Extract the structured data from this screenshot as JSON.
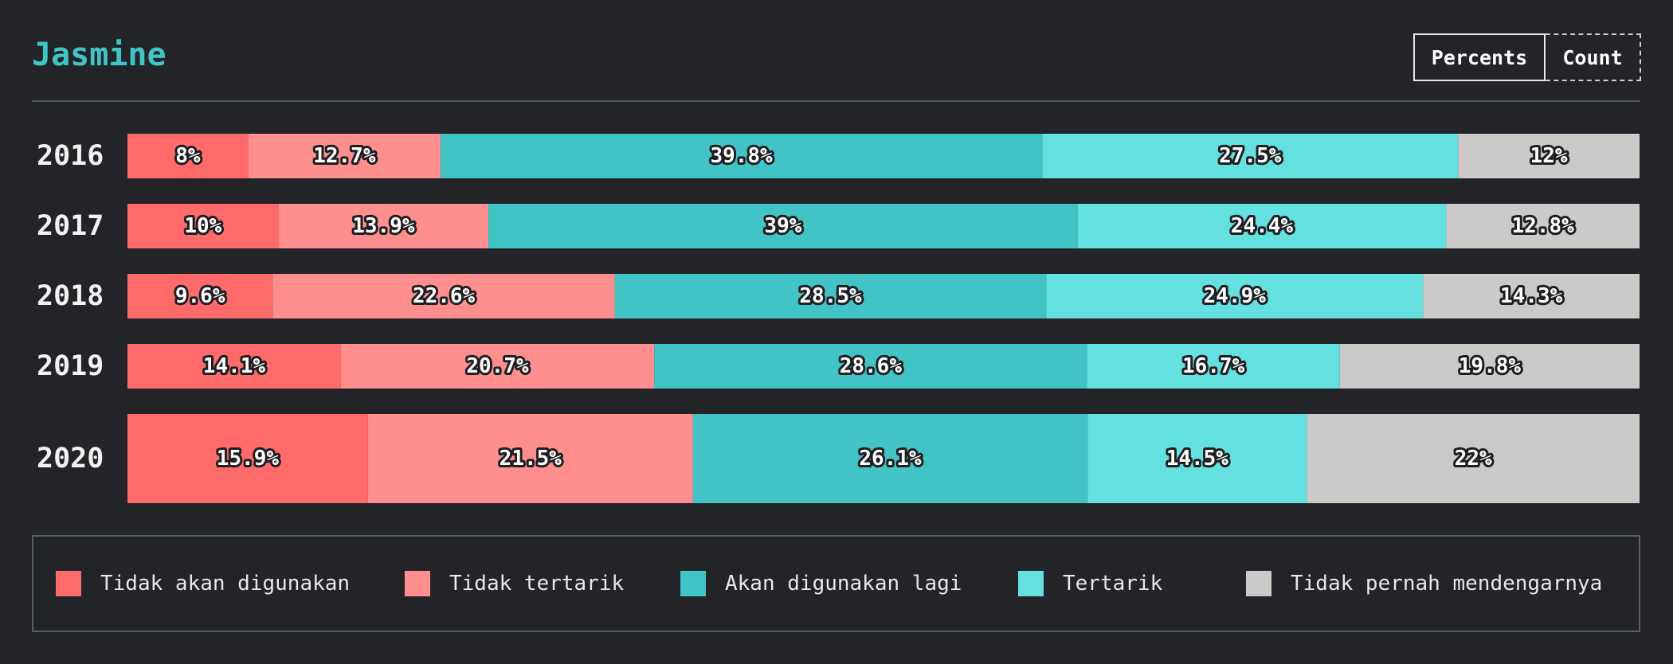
{
  "header": {
    "title": "Jasmine",
    "toggle": {
      "percents_label": "Percents",
      "count_label": "Count",
      "active": "Percents"
    }
  },
  "colors": {
    "background": "#232428",
    "title": "#42c4c6",
    "series": [
      "#ff6a6a",
      "#ff8f8f",
      "#42c4c6",
      "#64e0e0",
      "#cccac8"
    ]
  },
  "chart_data": {
    "type": "bar",
    "orientation": "horizontal",
    "stacked": true,
    "normalized_percent": true,
    "categories": [
      "2016",
      "2017",
      "2018",
      "2019",
      "2020"
    ],
    "series": [
      {
        "name": "Tidak akan digunakan",
        "values": [
          8,
          10,
          9.6,
          14.1,
          15.9
        ],
        "labels": [
          "8%",
          "10%",
          "9.6%",
          "14.1%",
          "15.9%"
        ]
      },
      {
        "name": "Tidak tertarik",
        "values": [
          12.7,
          13.9,
          22.6,
          20.7,
          21.5
        ],
        "labels": [
          "12.7%",
          "13.9%",
          "22.6%",
          "20.7%",
          "21.5%"
        ]
      },
      {
        "name": "Akan digunakan lagi",
        "values": [
          39.8,
          39,
          28.5,
          28.6,
          26.1
        ],
        "labels": [
          "39.8%",
          "39%",
          "28.5%",
          "28.6%",
          "26.1%"
        ]
      },
      {
        "name": "Tertarik",
        "values": [
          27.5,
          24.4,
          24.9,
          16.7,
          14.5
        ],
        "labels": [
          "27.5%",
          "24.4%",
          "24.9%",
          "16.7%",
          "14.5%"
        ]
      },
      {
        "name": "Tidak pernah mendengarnya",
        "values": [
          12,
          12.8,
          14.3,
          19.8,
          22
        ],
        "labels": [
          "12%",
          "12.8%",
          "14.3%",
          "19.8%",
          "22%"
        ]
      }
    ],
    "legend_position": "bottom",
    "grid": false
  }
}
